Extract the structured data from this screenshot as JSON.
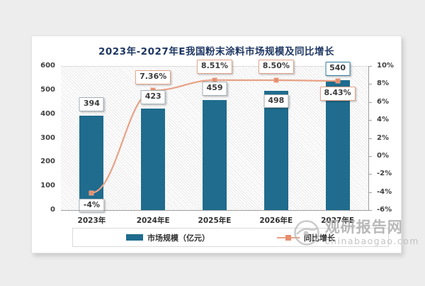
{
  "title": "2023年-2027年E我国粉末涂料市场规模及同比增长",
  "chart_data": {
    "type": "bar",
    "subtype": "bar+line-combo",
    "categories": [
      "2023年",
      "2024年E",
      "2025年E",
      "2026年E",
      "2027年E"
    ],
    "series": [
      {
        "name": "市场规模（亿元）",
        "type": "bar",
        "axis": "left",
        "values": [
          394,
          423,
          459,
          498,
          540
        ],
        "labels": [
          "394",
          "423",
          "459",
          "498",
          "540"
        ]
      },
      {
        "name": "同比增长",
        "type": "line",
        "axis": "right",
        "values": [
          -4,
          7.36,
          8.51,
          8.5,
          8.43
        ],
        "labels": [
          "-4%",
          "7.36%",
          "8.51%",
          "8.50%",
          "8.43%"
        ]
      }
    ],
    "left_axis": {
      "min": 0,
      "max": 600,
      "step": 100,
      "ticks": [
        "0",
        "100",
        "200",
        "300",
        "400",
        "500",
        "600"
      ]
    },
    "right_axis": {
      "min": -6,
      "max": 10,
      "step": 2,
      "ticks": [
        "-6%",
        "-4%",
        "-2%",
        "0%",
        "2%",
        "4%",
        "6%",
        "8%",
        "10%"
      ]
    },
    "legend": [
      "市场规模（亿元）",
      "同比增长"
    ],
    "legend_position": "bottom",
    "grid": false
  },
  "colors": {
    "bar": "#1f6c8e",
    "line": "#e8a185",
    "marker": "#e68e6e",
    "title": "#1f3864",
    "value_box_border": "#a3aeb4",
    "value_box_border_last": "#2e7d9e",
    "pct_box_border": "#e2a287",
    "pct_box_border_first": "#a3aeb4",
    "axis_text": "#3f3f3f"
  },
  "watermark": {
    "name": "观研报告网",
    "domain": "chinabaogao.com"
  }
}
